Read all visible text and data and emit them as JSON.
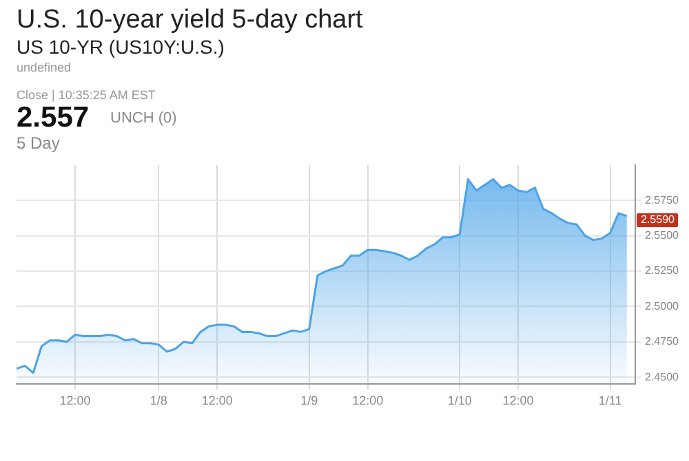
{
  "chart_data": {
    "type": "area",
    "title": "U.S. 10-year yield 5-day chart",
    "subtitle": "US 10-YR (US10Y:U.S.)",
    "annotations": [
      "undefined",
      "Close | 10:35:25 AM EST",
      "2.557",
      "UNCH (0)",
      "5 Day",
      "2.5590"
    ],
    "categories": [
      null,
      null,
      null,
      null,
      null,
      null,
      null,
      "12:00",
      null,
      null,
      null,
      null,
      null,
      null,
      null,
      null,
      null,
      "1/8",
      null,
      null,
      null,
      null,
      null,
      null,
      "12:00",
      null,
      null,
      null,
      null,
      null,
      null,
      null,
      null,
      null,
      null,
      "1/9",
      null,
      null,
      null,
      null,
      null,
      null,
      "12:00",
      null,
      null,
      null,
      null,
      null,
      null,
      null,
      null,
      null,
      null,
      "1/10",
      null,
      null,
      null,
      null,
      null,
      null,
      "12:00",
      null,
      null,
      null,
      null,
      null,
      null,
      null,
      null,
      null,
      null,
      "1/11",
      null,
      null,
      null
    ],
    "series": [
      {
        "color": "#4aa3e8",
        "values": [
          2.456,
          2.458,
          2.453,
          2.472,
          2.476,
          2.476,
          2.475,
          2.48,
          2.479,
          2.479,
          2.479,
          2.48,
          2.479,
          2.476,
          2.477,
          2.474,
          2.474,
          2.473,
          2.468,
          2.47,
          2.475,
          2.474,
          2.482,
          2.486,
          2.487,
          2.487,
          2.486,
          2.482,
          2.482,
          2.481,
          2.479,
          2.479,
          2.481,
          2.483,
          2.482,
          2.484,
          2.522,
          2.525,
          2.527,
          2.529,
          2.536,
          2.536,
          2.54,
          2.54,
          2.539,
          2.538,
          2.536,
          2.533,
          2.536,
          2.541,
          2.544,
          2.549,
          2.549,
          2.551,
          2.59,
          2.582,
          2.586,
          2.59,
          2.584,
          2.586,
          2.582,
          2.581,
          2.584,
          2.569,
          2.566,
          2.562,
          2.559,
          2.558,
          2.55,
          2.547,
          2.548,
          2.552,
          2.566,
          2.564,
          null
        ]
      }
    ],
    "ylim": [
      2.445,
      2.6
    ],
    "yticks": [
      {
        "value": 2.45,
        "label": "2.4500"
      },
      {
        "value": 2.475,
        "label": "2.4750"
      },
      {
        "value": 2.5,
        "label": "2.5000"
      },
      {
        "value": 2.525,
        "label": "2.5250"
      },
      {
        "value": 2.55,
        "label": "2.5500"
      },
      {
        "value": 2.575,
        "label": "2.5750"
      }
    ],
    "grid": true
  }
}
